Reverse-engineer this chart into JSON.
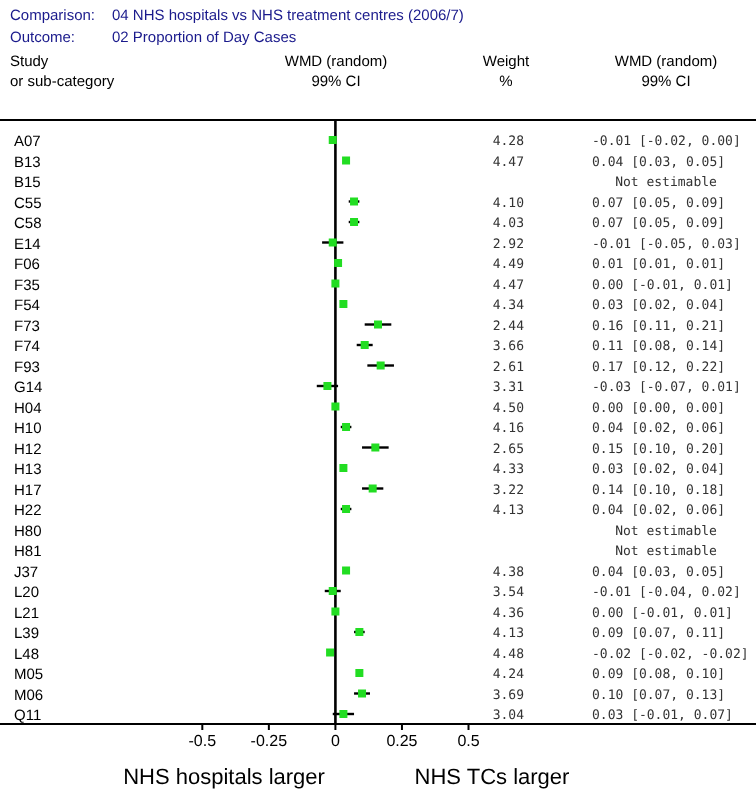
{
  "chart_data": {
    "type": "scatter",
    "orientation": "horizontal",
    "title": "Comparison:  04 NHS hospitals vs NHS treatment centres (2006/7)",
    "subtitle": "Outcome:  02 Proportion of Day Cases",
    "annotations": [
      "Study",
      "or sub-category",
      "WMD (random)",
      "99% CI",
      "Weight",
      "%",
      "WMD (random)",
      "99% CI",
      "NHS hospitals larger",
      "NHS TCs larger",
      "4.28",
      "-0.01 [-0.02, 0.00]",
      "4.47",
      "0.04 [0.03, 0.05]",
      "Not estimable",
      "4.10",
      "0.07 [0.05, 0.09]",
      "4.03",
      "0.07 [0.05, 0.09]",
      "2.92",
      "-0.01 [-0.05, 0.03]",
      "4.49",
      "0.01 [0.01, 0.01]",
      "4.47",
      "0.00 [-0.01, 0.01]",
      "4.34",
      "0.03 [0.02, 0.04]",
      "2.44",
      "0.16 [0.11, 0.21]",
      "3.66",
      "0.11 [0.08, 0.14]",
      "2.61",
      "0.17 [0.12, 0.22]",
      "3.31",
      "-0.03 [-0.07, 0.01]",
      "4.50",
      "0.00 [0.00, 0.00]",
      "4.16",
      "0.04 [0.02, 0.06]",
      "2.65",
      "0.15 [0.10, 0.20]",
      "4.33",
      "0.03 [0.02, 0.04]",
      "3.22",
      "0.14 [0.10, 0.18]",
      "4.13",
      "0.04 [0.02, 0.06]",
      "Not estimable",
      "Not estimable",
      "4.38",
      "0.04 [0.03, 0.05]",
      "3.54",
      "-0.01 [-0.04, 0.02]",
      "4.36",
      "0.00 [-0.01, 0.01]",
      "4.13",
      "0.09 [0.07, 0.11]",
      "4.48",
      "-0.02 [-0.02, -0.02]",
      "4.24",
      "0.09 [0.08, 0.10]",
      "3.69",
      "0.10 [0.07, 0.13]",
      "3.04",
      "0.03 [-0.01, 0.07]"
    ],
    "categories": [
      "A07",
      "B13",
      "B15",
      "C55",
      "C58",
      "E14",
      "F06",
      "F35",
      "F54",
      "F73",
      "F74",
      "F93",
      "G14",
      "H04",
      "H10",
      "H12",
      "H13",
      "H17",
      "H22",
      "H80",
      "H81",
      "J37",
      "L20",
      "L21",
      "L39",
      "L48",
      "M05",
      "M06",
      "Q11"
    ],
    "xlim": [
      -1.26,
      1.58
    ],
    "xticks": [
      -0.5,
      -0.25,
      0,
      0.25,
      0.5
    ],
    "ref_lines": [
      {
        "axis": "x",
        "value": 0,
        "color": "#000000"
      }
    ],
    "marker": "square",
    "series": [
      {
        "color": "#22dd22",
        "values": [
          -0.01,
          0.04,
          null,
          0.07,
          0.07,
          -0.01,
          0.01,
          0.0,
          0.03,
          0.16,
          0.11,
          0.17,
          -0.03,
          0.0,
          0.04,
          0.15,
          0.03,
          0.14,
          0.04,
          null,
          null,
          0.04,
          -0.01,
          0.0,
          0.09,
          -0.02,
          0.09,
          0.1,
          0.03
        ],
        "errors": [
          [
            -0.02,
            0.0
          ],
          [
            0.03,
            0.05
          ],
          null,
          [
            0.05,
            0.09
          ],
          [
            0.05,
            0.09
          ],
          [
            -0.05,
            0.03
          ],
          [
            0.01,
            0.01
          ],
          [
            -0.01,
            0.01
          ],
          [
            0.02,
            0.04
          ],
          [
            0.11,
            0.21
          ],
          [
            0.08,
            0.14
          ],
          [
            0.12,
            0.22
          ],
          [
            -0.07,
            0.01
          ],
          [
            0.0,
            0.0
          ],
          [
            0.02,
            0.06
          ],
          [
            0.1,
            0.2
          ],
          [
            0.02,
            0.04
          ],
          [
            0.1,
            0.18
          ],
          [
            0.02,
            0.06
          ],
          null,
          null,
          [
            0.03,
            0.05
          ],
          [
            -0.04,
            0.02
          ],
          [
            -0.01,
            0.01
          ],
          [
            0.07,
            0.11
          ],
          [
            -0.02,
            -0.02
          ],
          [
            0.08,
            0.1
          ],
          [
            0.07,
            0.13
          ],
          [
            -0.01,
            0.07
          ]
        ]
      }
    ]
  }
}
